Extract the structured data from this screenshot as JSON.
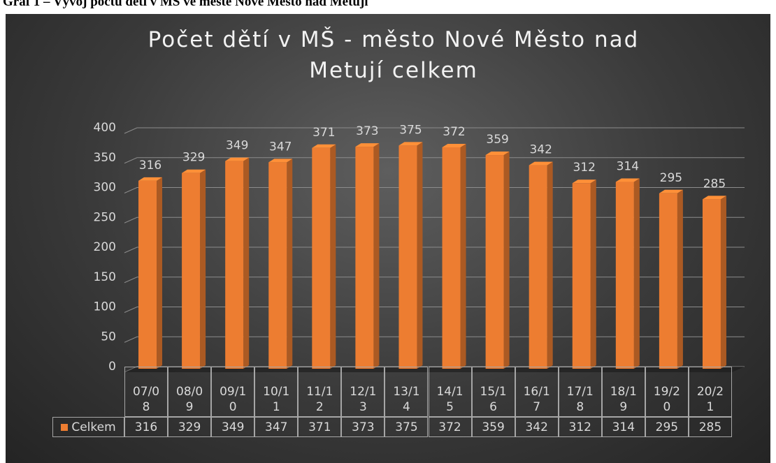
{
  "caption": "Graf 1 – Vývoj počtu dětí v MŠ ve městě Nové Město nad Metují",
  "chart_data": {
    "type": "bar3d",
    "title": "Počet dětí v MŠ - město Nové Město nad Metují  celkem",
    "categories": [
      "07/08",
      "08/09",
      "09/10",
      "10/11",
      "11/12",
      "12/13",
      "13/14",
      "14/15",
      "15/16",
      "16/17",
      "17/18",
      "18/19",
      "19/20",
      "20/21"
    ],
    "series": [
      {
        "name": "Celkem",
        "color": "#ed7d31",
        "values": [
          316,
          329,
          349,
          347,
          371,
          373,
          375,
          372,
          359,
          342,
          312,
          314,
          295,
          285
        ]
      }
    ],
    "ylim": [
      0,
      400
    ],
    "yticks": [
      0,
      50,
      100,
      150,
      200,
      250,
      300,
      350,
      400
    ],
    "grid": true,
    "data_table": true
  }
}
